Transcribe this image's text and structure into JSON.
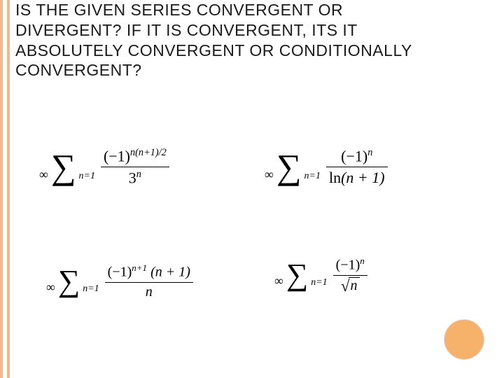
{
  "heading": {
    "line1": "IS THE GIVEN SERIES CONVERGENT OR",
    "line2": "DIVERGENT? IF IT IS CONVERGENT, ITS IT",
    "line3": "ABSOLUTELY CONVERGENT OR CONDITIONALLY",
    "line4": "CONVERGENT?"
  },
  "sigma": {
    "upper": "∞",
    "lower_var": "n",
    "lower_eq": "=1"
  },
  "formulas": {
    "f1": {
      "num_base": "(−1)",
      "num_exp": "n(n+1)/2",
      "den_base": "3",
      "den_exp": "n"
    },
    "f2": {
      "num_base": "(−1)",
      "num_exp": "n",
      "den_fn": "ln",
      "den_arg": "(n + 1)"
    },
    "f3": {
      "num_base": "(−1)",
      "num_exp": "n+1",
      "num_tail": "(n + 1)",
      "den": "n"
    },
    "f4": {
      "num_base": "(−1)",
      "num_exp": "n",
      "den_var": "n"
    }
  },
  "colors": {
    "accent": "#f6b26b",
    "border": "#f5b78a",
    "text": "#1a1a1a",
    "bg": "#ffffff"
  }
}
